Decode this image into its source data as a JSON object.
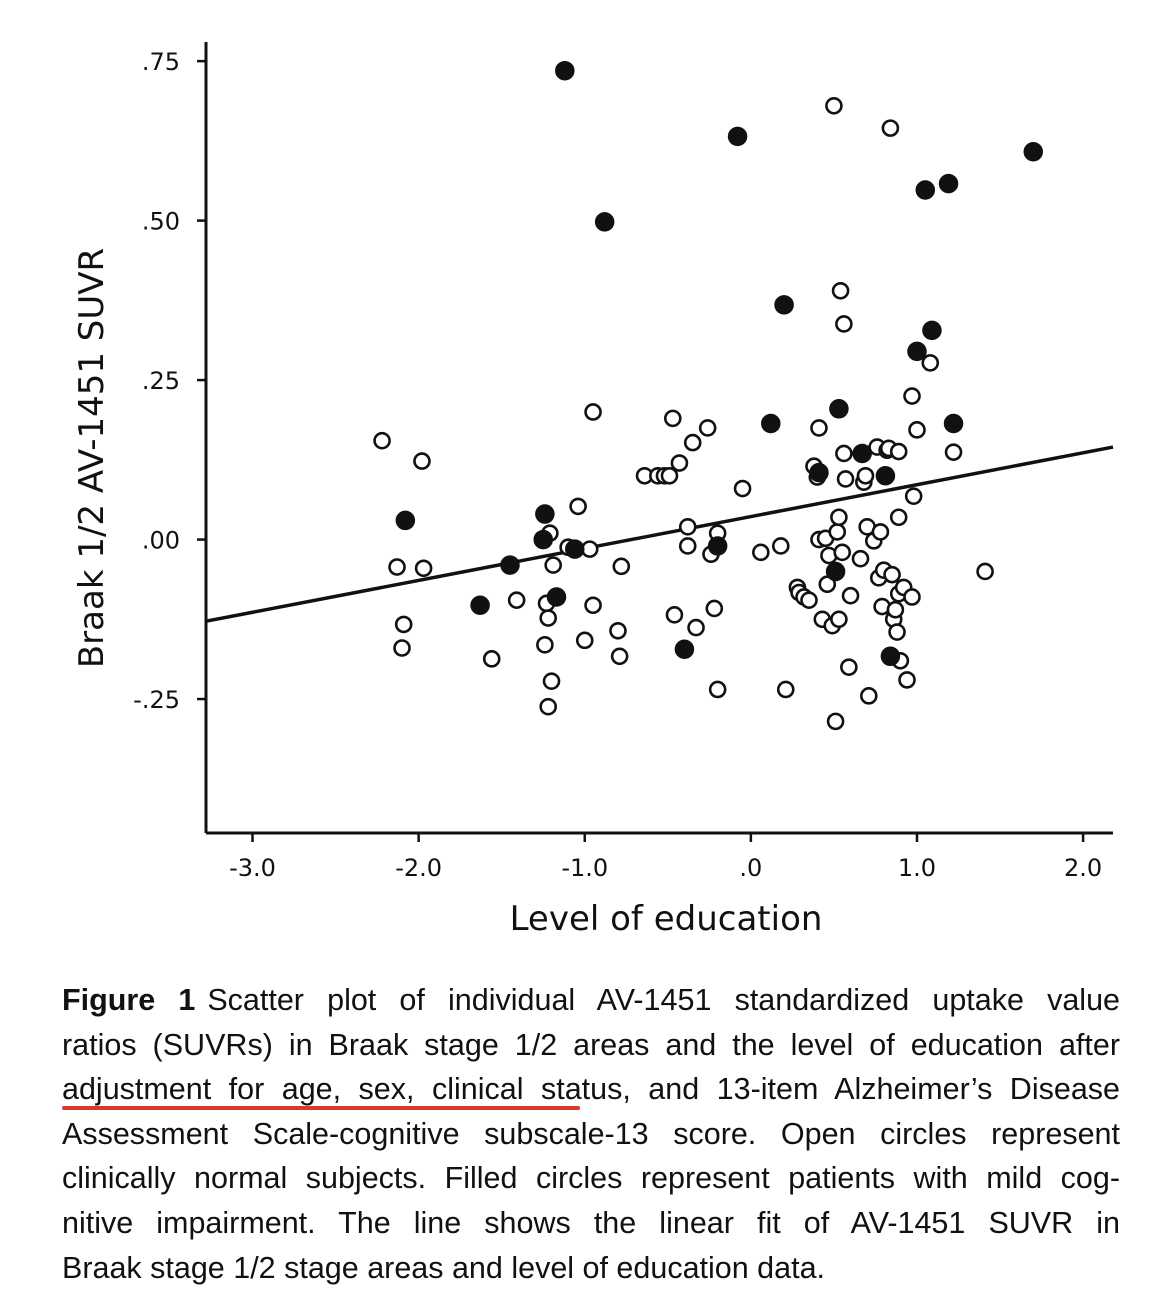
{
  "chart_data": {
    "type": "scatter",
    "title": "",
    "xlabel": "Level of education",
    "ylabel": "Braak 1/2 AV-1451 SUVR",
    "xlim": [
      -3.28,
      2.18
    ],
    "ylim": [
      -0.46,
      0.78
    ],
    "xticks": [
      -3.0,
      -2.0,
      -1.0,
      0.0,
      1.0,
      2.0
    ],
    "xtick_labels": [
      "-3.0",
      "-2.0",
      "-1.0",
      ".0",
      "1.0",
      "2.0"
    ],
    "yticks": [
      0.75,
      0.5,
      0.25,
      0.0,
      -0.25
    ],
    "ytick_labels": [
      ".75",
      ".50",
      ".25",
      ".00",
      "-.25"
    ],
    "grid": false,
    "fit_line": {
      "intercept": 0.036,
      "slope": 0.05
    },
    "series": [
      {
        "marker": "open-circle",
        "points": [
          [
            -2.22,
            0.155
          ],
          [
            -1.98,
            0.123
          ],
          [
            -2.13,
            -0.043
          ],
          [
            -1.97,
            -0.045
          ],
          [
            -2.09,
            -0.133
          ],
          [
            -2.1,
            -0.17
          ],
          [
            -1.56,
            -0.187
          ],
          [
            -1.41,
            -0.095
          ],
          [
            -1.21,
            0.01
          ],
          [
            -1.19,
            -0.04
          ],
          [
            -1.23,
            -0.1
          ],
          [
            -1.22,
            -0.123
          ],
          [
            -1.24,
            -0.165
          ],
          [
            -1.2,
            -0.222
          ],
          [
            -1.22,
            -0.262
          ],
          [
            -1.1,
            -0.012
          ],
          [
            -1.04,
            0.052
          ],
          [
            -0.97,
            -0.015
          ],
          [
            -0.95,
            0.2
          ],
          [
            -0.95,
            -0.103
          ],
          [
            -1.0,
            -0.158
          ],
          [
            -0.8,
            -0.143
          ],
          [
            -0.79,
            -0.183
          ],
          [
            -0.78,
            -0.042
          ],
          [
            -0.64,
            0.1
          ],
          [
            -0.56,
            0.1
          ],
          [
            -0.52,
            0.1
          ],
          [
            -0.49,
            0.1
          ],
          [
            -0.47,
            0.19
          ],
          [
            -0.46,
            -0.118
          ],
          [
            -0.43,
            0.12
          ],
          [
            -0.38,
            0.02
          ],
          [
            -0.38,
            -0.01
          ],
          [
            -0.35,
            0.152
          ],
          [
            -0.33,
            -0.138
          ],
          [
            -0.26,
            0.175
          ],
          [
            -0.24,
            -0.023
          ],
          [
            -0.22,
            -0.108
          ],
          [
            -0.2,
            0.01
          ],
          [
            -0.2,
            -0.235
          ],
          [
            -0.05,
            0.08
          ],
          [
            0.06,
            -0.02
          ],
          [
            0.18,
            -0.01
          ],
          [
            0.21,
            -0.235
          ],
          [
            0.28,
            -0.075
          ],
          [
            0.29,
            -0.083
          ],
          [
            0.32,
            -0.09
          ],
          [
            0.35,
            -0.095
          ],
          [
            0.38,
            0.115
          ],
          [
            0.4,
            0.098
          ],
          [
            0.41,
            0.0
          ],
          [
            0.41,
            0.175
          ],
          [
            0.43,
            -0.125
          ],
          [
            0.45,
            0.002
          ],
          [
            0.46,
            -0.07
          ],
          [
            0.47,
            -0.025
          ],
          [
            0.49,
            -0.135
          ],
          [
            0.5,
            0.68
          ],
          [
            0.51,
            -0.285
          ],
          [
            0.52,
            0.012
          ],
          [
            0.53,
            0.035
          ],
          [
            0.53,
            -0.125
          ],
          [
            0.54,
            0.39
          ],
          [
            0.55,
            -0.02
          ],
          [
            0.56,
            0.338
          ],
          [
            0.56,
            0.135
          ],
          [
            0.57,
            0.095
          ],
          [
            0.59,
            -0.2
          ],
          [
            0.6,
            -0.088
          ],
          [
            0.66,
            -0.03
          ],
          [
            0.68,
            0.09
          ],
          [
            0.69,
            0.1
          ],
          [
            0.7,
            0.02
          ],
          [
            0.71,
            -0.245
          ],
          [
            0.74,
            -0.002
          ],
          [
            0.76,
            0.145
          ],
          [
            0.77,
            -0.06
          ],
          [
            0.78,
            0.012
          ],
          [
            0.79,
            -0.105
          ],
          [
            0.8,
            -0.048
          ],
          [
            0.82,
            0.14
          ],
          [
            0.83,
            0.143
          ],
          [
            0.84,
            0.645
          ],
          [
            0.85,
            -0.055
          ],
          [
            0.86,
            -0.125
          ],
          [
            0.87,
            -0.11
          ],
          [
            0.88,
            -0.145
          ],
          [
            0.89,
            0.035
          ],
          [
            0.89,
            0.138
          ],
          [
            0.89,
            -0.085
          ],
          [
            0.9,
            -0.19
          ],
          [
            0.92,
            -0.075
          ],
          [
            0.94,
            -0.22
          ],
          [
            0.97,
            0.225
          ],
          [
            0.97,
            -0.09
          ],
          [
            0.98,
            0.068
          ],
          [
            1.0,
            0.172
          ],
          [
            1.08,
            0.277
          ],
          [
            1.22,
            0.137
          ],
          [
            1.41,
            -0.05
          ]
        ]
      },
      {
        "marker": "filled-circle",
        "points": [
          [
            -2.08,
            0.03
          ],
          [
            -1.63,
            -0.103
          ],
          [
            -1.45,
            -0.04
          ],
          [
            -1.24,
            0.04
          ],
          [
            -1.25,
            0.0
          ],
          [
            -1.17,
            -0.09
          ],
          [
            -1.12,
            0.735
          ],
          [
            -1.06,
            -0.015
          ],
          [
            -0.88,
            0.498
          ],
          [
            -0.4,
            -0.172
          ],
          [
            -0.2,
            -0.01
          ],
          [
            -0.08,
            0.632
          ],
          [
            0.12,
            0.182
          ],
          [
            0.2,
            0.368
          ],
          [
            0.41,
            0.105
          ],
          [
            0.51,
            -0.05
          ],
          [
            0.53,
            0.205
          ],
          [
            0.67,
            0.135
          ],
          [
            0.81,
            0.1
          ],
          [
            0.84,
            -0.183
          ],
          [
            1.0,
            0.295
          ],
          [
            1.05,
            0.548
          ],
          [
            1.09,
            0.328
          ],
          [
            1.19,
            0.558
          ],
          [
            1.22,
            0.182
          ],
          [
            1.7,
            0.608
          ]
        ]
      }
    ]
  },
  "caption": {
    "label": "Figure 1",
    "lines": [
      "Scatter plot of individual AV-1451 standardized uptake value",
      "ratios (SUVRs) in Braak stage 1/2 areas and the level of education after",
      "adjustment for age, sex, clinical status, and 13-item Alzheimer’s Disease",
      "Assessment Scale-cognitive subscale-13 score. Open circles represent",
      "clinically normal subjects. Filled circles represent patients with mild cog-",
      "nitive impairment. The line shows the linear fit of AV-1451 SUVR in",
      "Braak stage 1/2 stage areas and level of education data."
    ]
  },
  "colors": {
    "ink": "#111111",
    "underline": "#d63b2a"
  }
}
